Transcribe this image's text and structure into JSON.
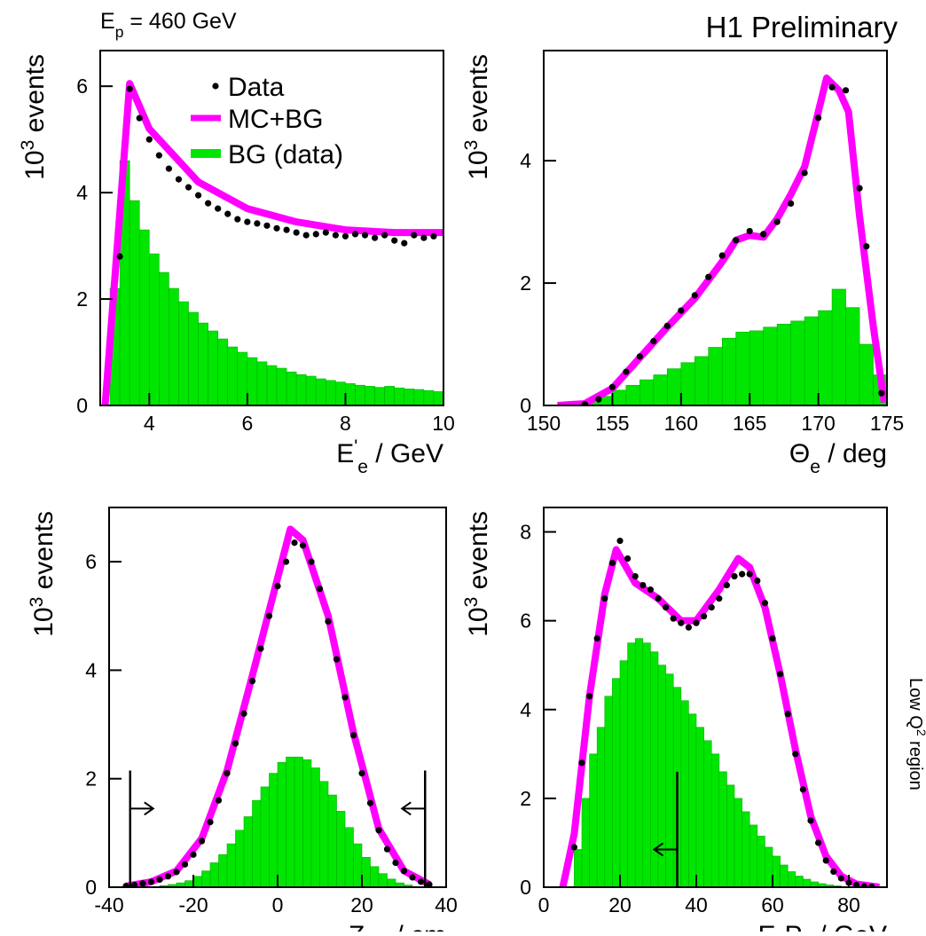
{
  "header": {
    "left": [
      {
        "text": "E"
      },
      {
        "text": "p",
        "shift": "sub"
      },
      {
        "text": " = 460 GeV"
      }
    ],
    "right": "H1 Preliminary"
  },
  "side_note": [
    {
      "text": "Low Q"
    },
    {
      "text": "2",
      "shift": "super"
    },
    {
      "text": " region"
    }
  ],
  "chart_data": [
    {
      "type": "histogram",
      "legend": true,
      "x_label": [
        {
          "text": "E"
        },
        {
          "text": "'",
          "shift": "super"
        },
        {
          "text": "e",
          "shift": "sub"
        },
        {
          "text": " / GeV"
        }
      ],
      "y_label": [
        {
          "text": "10"
        },
        {
          "text": "3",
          "shift": "super"
        },
        {
          "text": " events"
        }
      ],
      "xlim": [
        3,
        10
      ],
      "xticks": [
        4,
        6,
        8,
        10
      ],
      "ylim": [
        0,
        6.67
      ],
      "yticks": [
        0,
        2,
        4,
        6
      ],
      "bg": {
        "name": "BG (data)",
        "color": "#00e600",
        "bins": [
          3.2,
          3.4,
          3.6,
          3.8,
          4.0,
          4.2,
          4.4,
          4.6,
          4.8,
          5.0,
          5.2,
          5.4,
          5.6,
          5.8,
          6.0,
          6.2,
          6.4,
          6.6,
          6.8,
          7.0,
          7.2,
          7.4,
          7.6,
          7.8,
          8.0,
          8.2,
          8.4,
          8.6,
          8.8,
          9.0,
          9.2,
          9.4,
          9.6,
          9.8,
          10.0
        ],
        "counts": [
          2.2,
          4.6,
          3.85,
          3.3,
          2.85,
          2.5,
          2.2,
          1.95,
          1.75,
          1.55,
          1.4,
          1.25,
          1.1,
          1.0,
          0.9,
          0.82,
          0.75,
          0.7,
          0.63,
          0.58,
          0.55,
          0.5,
          0.47,
          0.44,
          0.41,
          0.38,
          0.36,
          0.34,
          0.36,
          0.33,
          0.31,
          0.3,
          0.28,
          0.26
        ]
      },
      "mc": {
        "name": "MC+BG",
        "color": "#ff00ff",
        "x": [
          3.1,
          3.6,
          4,
          5,
          6,
          7,
          8,
          9,
          10
        ],
        "y": [
          0,
          6.05,
          5.2,
          4.2,
          3.7,
          3.45,
          3.3,
          3.25,
          3.25
        ]
      },
      "data": {
        "name": "Data",
        "color": "#000000",
        "x": [
          3.4,
          3.6,
          3.8,
          4.0,
          4.2,
          4.4,
          4.6,
          4.8,
          5.0,
          5.2,
          5.4,
          5.6,
          5.8,
          6.0,
          6.2,
          6.4,
          6.6,
          6.8,
          7.0,
          7.2,
          7.4,
          7.6,
          7.8,
          8.0,
          8.2,
          8.4,
          8.6,
          8.8,
          9.0,
          9.2,
          9.4,
          9.6,
          9.8
        ],
        "y": [
          2.8,
          5.95,
          5.4,
          5.0,
          4.7,
          4.45,
          4.25,
          4.1,
          3.95,
          3.8,
          3.7,
          3.6,
          3.5,
          3.45,
          3.42,
          3.38,
          3.33,
          3.3,
          3.25,
          3.2,
          3.22,
          3.25,
          3.2,
          3.18,
          3.22,
          3.2,
          3.15,
          3.2,
          3.1,
          3.05,
          3.2,
          3.15,
          3.18
        ]
      }
    },
    {
      "type": "histogram",
      "x_label": [
        {
          "text": "Θ"
        },
        {
          "text": "e",
          "shift": "sub"
        },
        {
          "text": " / deg"
        }
      ],
      "y_label": [
        {
          "text": "10"
        },
        {
          "text": "3",
          "shift": "super"
        },
        {
          "text": " events"
        }
      ],
      "xlim": [
        150,
        175
      ],
      "xticks": [
        150,
        155,
        160,
        165,
        170,
        175
      ],
      "ylim": [
        0,
        5.8
      ],
      "yticks": [
        0,
        2,
        4
      ],
      "bg": {
        "color": "#00e600",
        "bins": [
          153,
          154,
          155,
          156,
          157,
          158,
          159,
          160,
          161,
          162,
          163,
          164,
          165,
          166,
          167,
          168,
          169,
          170,
          171,
          172,
          173,
          174,
          175
        ],
        "counts": [
          0.05,
          0.15,
          0.25,
          0.33,
          0.42,
          0.5,
          0.6,
          0.7,
          0.8,
          0.95,
          1.1,
          1.2,
          1.22,
          1.28,
          1.33,
          1.38,
          1.45,
          1.55,
          1.9,
          1.6,
          1.0,
          0.5
        ]
      },
      "mc": {
        "color": "#ff00ff",
        "x": [
          151,
          153,
          155,
          157,
          159,
          161,
          163,
          164,
          165,
          166,
          167,
          168,
          169,
          170,
          170.6,
          171.5,
          172.2,
          173,
          174,
          174.8
        ],
        "y": [
          0,
          0.03,
          0.28,
          0.78,
          1.28,
          1.75,
          2.35,
          2.7,
          2.78,
          2.75,
          3.05,
          3.45,
          3.9,
          4.8,
          5.35,
          5.15,
          4.8,
          3.1,
          1.3,
          0.05
        ]
      },
      "data": {
        "color": "#000000",
        "x": [
          153,
          154,
          155,
          156,
          157,
          158,
          159,
          160,
          161,
          162,
          163,
          164,
          165,
          166,
          167,
          168,
          169,
          170,
          171,
          172,
          173,
          173.5,
          174.6
        ],
        "y": [
          0.02,
          0.1,
          0.3,
          0.55,
          0.8,
          1.05,
          1.3,
          1.55,
          1.8,
          2.1,
          2.45,
          2.7,
          2.85,
          2.8,
          3.0,
          3.3,
          3.8,
          4.7,
          5.2,
          5.15,
          3.55,
          2.6,
          0.2
        ]
      }
    },
    {
      "type": "histogram",
      "x_label": [
        {
          "text": "Z"
        },
        {
          "text": "vtx",
          "shift": "sub"
        },
        {
          "text": " / cm"
        }
      ],
      "y_label": [
        {
          "text": "10"
        },
        {
          "text": "3",
          "shift": "super"
        },
        {
          "text": " events"
        }
      ],
      "xlim": [
        -40,
        40
      ],
      "xticks": [
        -40,
        -20,
        0,
        20,
        40
      ],
      "ylim": [
        0,
        7
      ],
      "yticks": [
        0,
        2,
        4,
        6
      ],
      "bg": {
        "color": "#00e600",
        "bins": [
          -28,
          -26,
          -24,
          -22,
          -20,
          -18,
          -16,
          -14,
          -12,
          -10,
          -8,
          -6,
          -4,
          -2,
          0,
          2,
          4,
          6,
          8,
          10,
          12,
          14,
          16,
          18,
          20,
          22,
          24,
          26,
          28,
          30,
          32
        ],
        "counts": [
          0.03,
          0.05,
          0.08,
          0.12,
          0.2,
          0.3,
          0.45,
          0.6,
          0.8,
          1.05,
          1.3,
          1.6,
          1.85,
          2.1,
          2.3,
          2.4,
          2.4,
          2.35,
          2.2,
          1.95,
          1.7,
          1.4,
          1.1,
          0.8,
          0.55,
          0.38,
          0.25,
          0.15,
          0.08,
          0.04
        ]
      },
      "mc": {
        "color": "#ff00ff",
        "x": [
          -36,
          -30,
          -24,
          -18,
          -12,
          -6,
          0,
          3,
          6,
          12,
          18,
          24,
          30,
          36
        ],
        "y": [
          0.02,
          0.1,
          0.3,
          0.9,
          2.15,
          3.9,
          5.7,
          6.6,
          6.4,
          5.0,
          2.85,
          1.08,
          0.3,
          0.05
        ]
      },
      "data": {
        "color": "#000000",
        "x": [
          -36,
          -34,
          -32,
          -30,
          -28,
          -26,
          -24,
          -22,
          -20,
          -18,
          -16,
          -14,
          -12,
          -10,
          -8,
          -6,
          -4,
          -2,
          0,
          2,
          4,
          6,
          8,
          10,
          12,
          14,
          16,
          18,
          20,
          22,
          24,
          26,
          28,
          30,
          32,
          34,
          36
        ],
        "y": [
          0.02,
          0.04,
          0.07,
          0.1,
          0.14,
          0.2,
          0.28,
          0.42,
          0.6,
          0.85,
          1.2,
          1.6,
          2.1,
          2.65,
          3.2,
          3.8,
          4.4,
          5.0,
          5.55,
          6.0,
          6.35,
          6.3,
          6.0,
          5.5,
          4.9,
          4.2,
          3.5,
          2.8,
          2.1,
          1.55,
          1.05,
          0.7,
          0.45,
          0.3,
          0.18,
          0.1,
          0.05
        ]
      },
      "cuts": [
        {
          "x": -35,
          "top": 2.15,
          "arrow_y": 1.45,
          "dir": "right"
        },
        {
          "x": 35,
          "top": 2.15,
          "arrow_y": 1.45,
          "dir": "left"
        }
      ]
    },
    {
      "type": "histogram",
      "x_label": [
        {
          "text": "E-P"
        },
        {
          "text": "z",
          "shift": "sub"
        },
        {
          "text": " / GeV"
        }
      ],
      "y_label": [
        {
          "text": "10"
        },
        {
          "text": "3",
          "shift": "super"
        },
        {
          "text": " events"
        }
      ],
      "xlim": [
        0,
        90
      ],
      "xticks": [
        0,
        20,
        40,
        60,
        80
      ],
      "ylim": [
        0,
        8.55
      ],
      "yticks": [
        0,
        2,
        4,
        6,
        8
      ],
      "bg": {
        "color": "#00e600",
        "bins": [
          8,
          10,
          12,
          14,
          16,
          18,
          20,
          22,
          24,
          26,
          28,
          30,
          32,
          34,
          36,
          38,
          40,
          42,
          44,
          46,
          48,
          50,
          52,
          54,
          56,
          58,
          60,
          62,
          64,
          66,
          68,
          70,
          72,
          74,
          76,
          78
        ],
        "counts": [
          0.85,
          2.0,
          3.0,
          3.6,
          4.3,
          4.7,
          5.1,
          5.5,
          5.6,
          5.5,
          5.3,
          5.0,
          4.8,
          4.5,
          4.2,
          3.9,
          3.6,
          3.3,
          3.0,
          2.6,
          2.3,
          2.0,
          1.7,
          1.4,
          1.15,
          0.9,
          0.7,
          0.5,
          0.35,
          0.25,
          0.18,
          0.12,
          0.08,
          0.05,
          0.03
        ]
      },
      "mc": {
        "color": "#ff00ff",
        "x": [
          5,
          8,
          12,
          16,
          19,
          24,
          30,
          36,
          40,
          46,
          51,
          54,
          58,
          62,
          66,
          70,
          74,
          78,
          82,
          88
        ],
        "y": [
          0,
          1.2,
          4.3,
          6.6,
          7.6,
          6.85,
          6.5,
          6.0,
          6.0,
          6.7,
          7.4,
          7.2,
          6.3,
          4.8,
          3.1,
          1.6,
          0.7,
          0.25,
          0.07,
          0
        ]
      },
      "data": {
        "color": "#000000",
        "x": [
          8,
          10,
          12,
          14,
          16,
          18,
          20,
          22,
          24,
          26,
          28,
          30,
          32,
          34,
          36,
          38,
          40,
          42,
          44,
          46,
          48,
          50,
          52,
          54,
          56,
          58,
          60,
          62,
          64,
          66,
          68,
          70,
          72,
          74,
          76,
          78,
          80,
          82,
          84,
          86
        ],
        "y": [
          0.9,
          2.8,
          4.3,
          5.6,
          6.5,
          7.3,
          7.8,
          7.4,
          7.0,
          6.8,
          6.7,
          6.5,
          6.3,
          6.05,
          5.95,
          5.85,
          5.95,
          6.1,
          6.3,
          6.5,
          6.8,
          7.0,
          7.05,
          7.05,
          6.9,
          6.4,
          5.6,
          4.8,
          3.9,
          3.0,
          2.2,
          1.5,
          1.0,
          0.6,
          0.35,
          0.2,
          0.1,
          0.05,
          0.02,
          0.01
        ]
      },
      "cuts": [
        {
          "x": 35,
          "top": 2.6,
          "arrow_y": 0.85,
          "dir": "left"
        }
      ]
    }
  ]
}
